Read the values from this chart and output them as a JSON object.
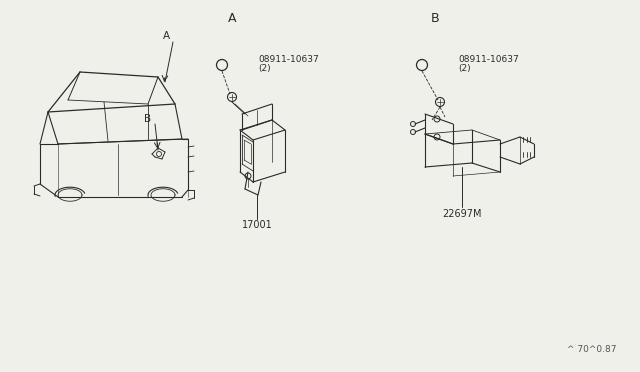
{
  "bg_color": "#f0f0eb",
  "line_color": "#2a2a2a",
  "text_color": "#2a2a2a",
  "watermark": "^ 70^0.87",
  "part_number": "08911-10637",
  "part_qty": "(2)",
  "part_a_id": "17001",
  "part_b_id": "22697M",
  "section_a": "A",
  "section_b": "B",
  "figsize": [
    6.4,
    3.72
  ],
  "dpi": 100
}
